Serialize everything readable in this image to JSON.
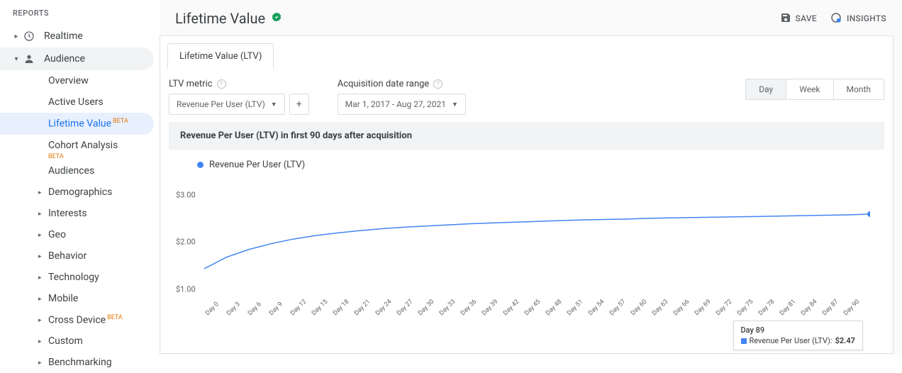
{
  "sidebar": {
    "header": "REPORTS",
    "realtime": "Realtime",
    "audience": "Audience",
    "items": [
      {
        "label": "Overview",
        "caret": false
      },
      {
        "label": "Active Users",
        "caret": false
      },
      {
        "label": "Lifetime Value",
        "caret": false,
        "beta": "BETA",
        "selected": true
      },
      {
        "label": "Cohort Analysis",
        "caret": false,
        "beta_below": "BETA"
      },
      {
        "label": "Audiences",
        "caret": false
      },
      {
        "label": "Demographics",
        "caret": true
      },
      {
        "label": "Interests",
        "caret": true
      },
      {
        "label": "Geo",
        "caret": true
      },
      {
        "label": "Behavior",
        "caret": true
      },
      {
        "label": "Technology",
        "caret": true
      },
      {
        "label": "Mobile",
        "caret": true
      },
      {
        "label": "Cross Device",
        "caret": true,
        "beta": "BETA"
      },
      {
        "label": "Custom",
        "caret": true
      },
      {
        "label": "Benchmarking",
        "caret": true
      }
    ]
  },
  "header": {
    "title": "Lifetime Value",
    "save": "SAVE",
    "insights": "INSIGHTS"
  },
  "tab": "Lifetime Value (LTV)",
  "controls": {
    "metric_label": "LTV metric",
    "metric_value": "Revenue Per User (LTV)",
    "date_label": "Acquisition date range",
    "date_value": "Mar 1, 2017 - Aug 27, 2021",
    "granularity": [
      "Day",
      "Week",
      "Month"
    ],
    "granularity_active": 0
  },
  "chart": {
    "title": "Revenue Per User (LTV) in first 90 days after acquisition",
    "legend": "Revenue Per User (LTV)",
    "series_color": "#4285f4",
    "y_ticks": [
      "$3.00",
      "$2.00",
      "$1.00"
    ],
    "y_positions": [
      15,
      50,
      85
    ],
    "ylim": [
      0,
      3.5
    ],
    "x_labels": [
      "Day 0",
      "Day 3",
      "Day 6",
      "Day 9",
      "Day 12",
      "Day 15",
      "Day 18",
      "Day 21",
      "Day 24",
      "Day 27",
      "Day 30",
      "Day 33",
      "Day 36",
      "Day 39",
      "Day 42",
      "Day 45",
      "Day 48",
      "Day 51",
      "Day 54",
      "Day 57",
      "Day 60",
      "Day 63",
      "Day 66",
      "Day 69",
      "Day 72",
      "Day 75",
      "Day 78",
      "Day 81",
      "Day 84",
      "Day 87",
      "Day 90"
    ],
    "values": [
      1.05,
      1.35,
      1.55,
      1.7,
      1.82,
      1.91,
      1.98,
      2.04,
      2.09,
      2.13,
      2.16,
      2.19,
      2.22,
      2.24,
      2.26,
      2.28,
      2.3,
      2.32,
      2.33,
      2.34,
      2.36,
      2.37,
      2.38,
      2.39,
      2.4,
      2.41,
      2.42,
      2.43,
      2.44,
      2.45,
      2.47
    ],
    "endpoint_color": "#4285f4",
    "line_width": 1.5,
    "grid_color": "#e8eaed",
    "background": "#ffffff"
  },
  "tooltip": {
    "title": "Day 89",
    "metric": "Revenue Per User (LTV):",
    "value": "$2.47",
    "color": "#4285f4"
  }
}
